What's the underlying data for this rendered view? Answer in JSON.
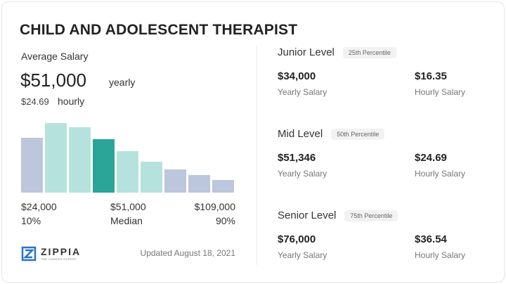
{
  "title": "CHILD AND ADOLESCENT THERAPIST",
  "average": {
    "label": "Average Salary",
    "salary": "$51,000",
    "salary_unit": "yearly",
    "hourly": "$24.69",
    "hourly_unit": "hourly"
  },
  "chart_data": {
    "type": "bar",
    "values": [
      78,
      99,
      93,
      76,
      59,
      44,
      33,
      25,
      18
    ],
    "colors": [
      "#bcc6dc",
      "#b5e2dd",
      "#b5e2dd",
      "#2aa597",
      "#b5e2dd",
      "#b5e2dd",
      "#bcc6dc",
      "#bcc6dc",
      "#bcc6dc"
    ],
    "ylim": [
      0,
      100
    ]
  },
  "range": {
    "low": "$24,000",
    "low_pct": "10%",
    "mid": "$51,000",
    "mid_label": "Median",
    "high": "$109,000",
    "high_pct": "90%"
  },
  "brand": {
    "name": "ZIPPIA",
    "tagline": "THE CAREER EXPERT"
  },
  "updated": "Updated August 18, 2021",
  "levels": [
    {
      "name": "Junior Level",
      "percentile": "25th Percentile",
      "yearly": "$34,000",
      "yearly_label": "Yearly Salary",
      "hourly": "$16.35",
      "hourly_label": "Hourly Salary"
    },
    {
      "name": "Mid Level",
      "percentile": "50th Percentile",
      "yearly": "$51,346",
      "yearly_label": "Yearly Salary",
      "hourly": "$24.69",
      "hourly_label": "Hourly Salary"
    },
    {
      "name": "Senior Level",
      "percentile": "75th Percentile",
      "yearly": "$76,000",
      "yearly_label": "Yearly Salary",
      "hourly": "$36.54",
      "hourly_label": "Hourly Salary"
    }
  ]
}
